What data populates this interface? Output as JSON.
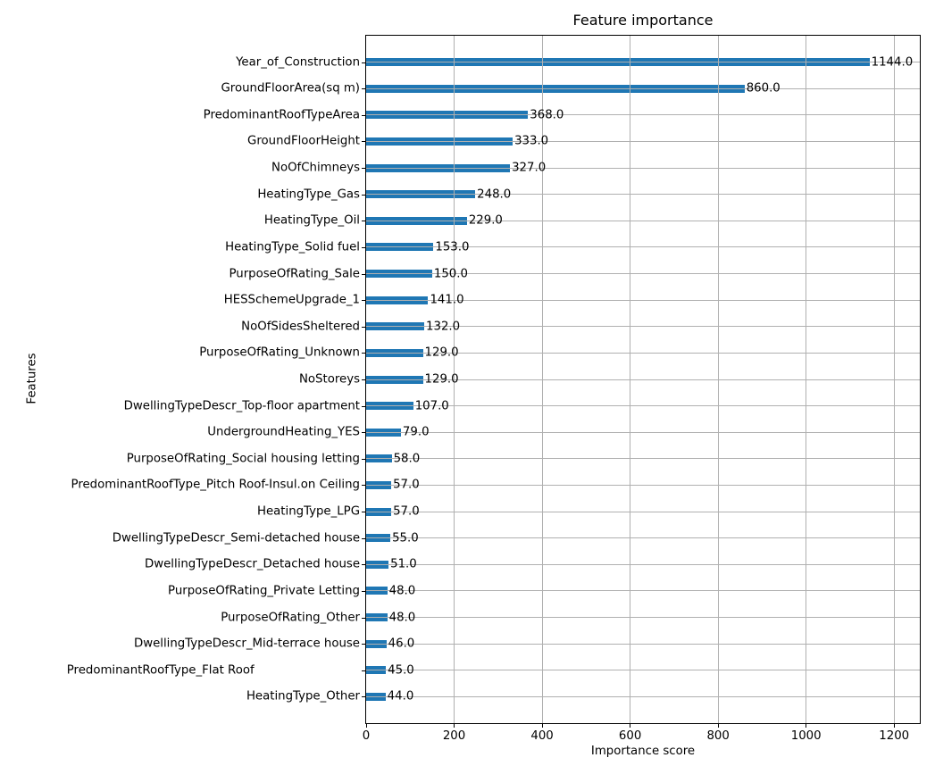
{
  "chart_data": {
    "type": "bar",
    "orientation": "horizontal",
    "title": "Feature importance",
    "xlabel": "Importance score",
    "ylabel": "Features",
    "xlim": [
      0,
      1258.4
    ],
    "xticks": [
      0,
      200,
      400,
      600,
      800,
      1000,
      1200
    ],
    "grid": true,
    "legend": "none",
    "bar_color": "#1f77b4",
    "grid_color": "#b0b0b0",
    "value_label_format": "one-decimal",
    "features": [
      {
        "label": "Year_of_Construction",
        "value": 1144.0
      },
      {
        "label": "GroundFloorArea(sq m)",
        "value": 860.0
      },
      {
        "label": "PredominantRoofTypeArea",
        "value": 368.0
      },
      {
        "label": "GroundFloorHeight",
        "value": 333.0
      },
      {
        "label": "NoOfChimneys",
        "value": 327.0
      },
      {
        "label": "HeatingType_Gas",
        "value": 248.0
      },
      {
        "label": "HeatingType_Oil",
        "value": 229.0
      },
      {
        "label": "HeatingType_Solid fuel",
        "value": 153.0
      },
      {
        "label": "PurposeOfRating_Sale",
        "value": 150.0
      },
      {
        "label": "HESSchemeUpgrade_1",
        "value": 141.0
      },
      {
        "label": "NoOfSidesSheltered",
        "value": 132.0
      },
      {
        "label": "PurposeOfRating_Unknown",
        "value": 129.0
      },
      {
        "label": "NoStoreys",
        "value": 129.0
      },
      {
        "label": "DwellingTypeDescr_Top-floor apartment",
        "value": 107.0
      },
      {
        "label": "UndergroundHeating_YES",
        "value": 79.0
      },
      {
        "label": "PurposeOfRating_Social housing letting",
        "value": 58.0
      },
      {
        "label": "PredominantRoofType_Pitch Roof-Insul.on Ceiling",
        "value": 57.0
      },
      {
        "label": "HeatingType_LPG",
        "value": 57.0
      },
      {
        "label": "DwellingTypeDescr_Semi-detached house",
        "value": 55.0
      },
      {
        "label": "DwellingTypeDescr_Detached house",
        "value": 51.0
      },
      {
        "label": "PurposeOfRating_Private Letting",
        "value": 48.0
      },
      {
        "label": "PurposeOfRating_Other",
        "value": 48.0
      },
      {
        "label": "DwellingTypeDescr_Mid-terrace house",
        "value": 46.0
      },
      {
        "label": "PredominantRoofType_Flat Roof                            ",
        "value": 45.0
      },
      {
        "label": "HeatingType_Other",
        "value": 44.0
      }
    ]
  }
}
